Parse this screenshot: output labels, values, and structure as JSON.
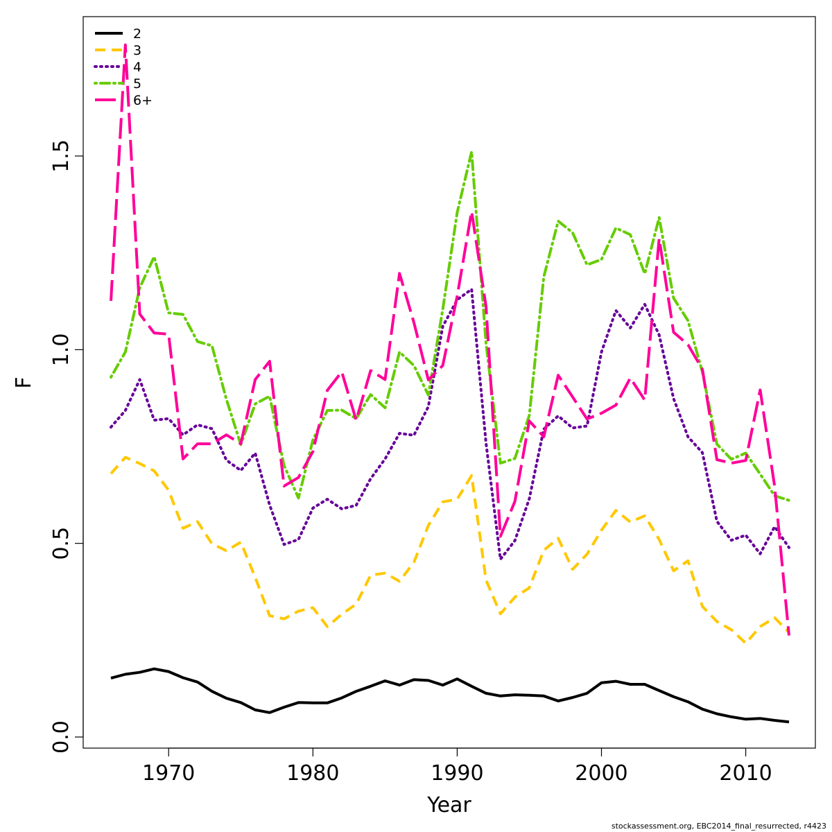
{
  "chart_data": {
    "type": "line",
    "xlabel": "Year",
    "ylabel": "F",
    "xlim": [
      1966,
      2013
    ],
    "ylim": [
      0,
      1.8
    ],
    "x_ticks": [
      1970,
      1980,
      1990,
      2000,
      2010
    ],
    "y_ticks": [
      0.0,
      0.5,
      1.0,
      1.5
    ],
    "y_tick_labels": [
      "0.0",
      "0.5",
      "1.0",
      "1.5"
    ],
    "grid": false,
    "legend_position": "top-left",
    "x": [
      1966,
      1967,
      1968,
      1969,
      1970,
      1971,
      1972,
      1973,
      1974,
      1975,
      1976,
      1977,
      1978,
      1979,
      1980,
      1981,
      1982,
      1983,
      1984,
      1985,
      1986,
      1987,
      1988,
      1989,
      1990,
      1991,
      1992,
      1993,
      1994,
      1995,
      1996,
      1997,
      1998,
      1999,
      2000,
      2001,
      2002,
      2003,
      2004,
      2005,
      2006,
      2007,
      2008,
      2009,
      2010,
      2011,
      2012,
      2013
    ],
    "series": [
      {
        "name": "2",
        "color": "#000000",
        "dash": "solid",
        "values": [
          0.152,
          0.162,
          0.167,
          0.176,
          0.169,
          0.153,
          0.142,
          0.118,
          0.1,
          0.089,
          0.07,
          0.063,
          0.077,
          0.089,
          0.088,
          0.088,
          0.101,
          0.118,
          0.131,
          0.145,
          0.134,
          0.148,
          0.146,
          0.134,
          0.15,
          0.131,
          0.113,
          0.106,
          0.109,
          0.108,
          0.106,
          0.093,
          0.102,
          0.113,
          0.14,
          0.144,
          0.136,
          0.136,
          0.12,
          0.104,
          0.091,
          0.072,
          0.06,
          0.052,
          0.046,
          0.048,
          0.043,
          0.039
        ]
      },
      {
        "name": "3",
        "color": "#ffc800",
        "dash": "dashed",
        "values": [
          0.68,
          0.722,
          0.706,
          0.687,
          0.637,
          0.539,
          0.556,
          0.499,
          0.481,
          0.503,
          0.412,
          0.313,
          0.305,
          0.325,
          0.334,
          0.285,
          0.317,
          0.343,
          0.418,
          0.423,
          0.402,
          0.451,
          0.546,
          0.607,
          0.614,
          0.675,
          0.405,
          0.318,
          0.361,
          0.385,
          0.482,
          0.513,
          0.433,
          0.472,
          0.534,
          0.585,
          0.555,
          0.571,
          0.51,
          0.429,
          0.455,
          0.337,
          0.298,
          0.277,
          0.242,
          0.285,
          0.308,
          0.27
        ]
      },
      {
        "name": "4",
        "color": "#660099",
        "dash": "dotted",
        "values": [
          0.8,
          0.843,
          0.923,
          0.818,
          0.822,
          0.78,
          0.806,
          0.796,
          0.715,
          0.688,
          0.733,
          0.599,
          0.497,
          0.51,
          0.591,
          0.614,
          0.589,
          0.598,
          0.667,
          0.718,
          0.784,
          0.779,
          0.853,
          1.06,
          1.129,
          1.156,
          0.759,
          0.459,
          0.507,
          0.615,
          0.795,
          0.829,
          0.798,
          0.803,
          0.994,
          1.101,
          1.056,
          1.117,
          1.038,
          0.874,
          0.775,
          0.734,
          0.557,
          0.508,
          0.521,
          0.473,
          0.543,
          0.489
        ]
      },
      {
        "name": "5",
        "color": "#66cc00",
        "dash": "dashdot",
        "values": [
          0.929,
          0.994,
          1.16,
          1.24,
          1.095,
          1.091,
          1.021,
          1.01,
          0.872,
          0.755,
          0.86,
          0.88,
          0.701,
          0.617,
          0.767,
          0.843,
          0.844,
          0.822,
          0.884,
          0.85,
          0.994,
          0.959,
          0.883,
          1.104,
          1.354,
          1.511,
          1.016,
          0.707,
          0.719,
          0.83,
          1.188,
          1.332,
          1.302,
          1.219,
          1.233,
          1.314,
          1.297,
          1.196,
          1.341,
          1.133,
          1.075,
          0.942,
          0.756,
          0.717,
          0.733,
          0.679,
          0.623,
          0.611
        ]
      },
      {
        "name": "6+",
        "color": "#ff0099",
        "dash": "longdash",
        "values": [
          1.126,
          1.787,
          1.092,
          1.043,
          1.04,
          0.718,
          0.757,
          0.757,
          0.78,
          0.757,
          0.923,
          0.97,
          0.648,
          0.67,
          0.737,
          0.895,
          0.943,
          0.818,
          0.946,
          0.923,
          1.197,
          1.07,
          0.922,
          0.959,
          1.138,
          1.357,
          1.112,
          0.518,
          0.608,
          0.816,
          0.775,
          0.934,
          0.878,
          0.821,
          0.836,
          0.857,
          0.927,
          0.87,
          1.287,
          1.045,
          1.013,
          0.949,
          0.716,
          0.707,
          0.714,
          0.896,
          0.648,
          0.262
        ]
      }
    ]
  },
  "footnote": "stockassessment.org, EBC2014_final_resurrected, r4423"
}
